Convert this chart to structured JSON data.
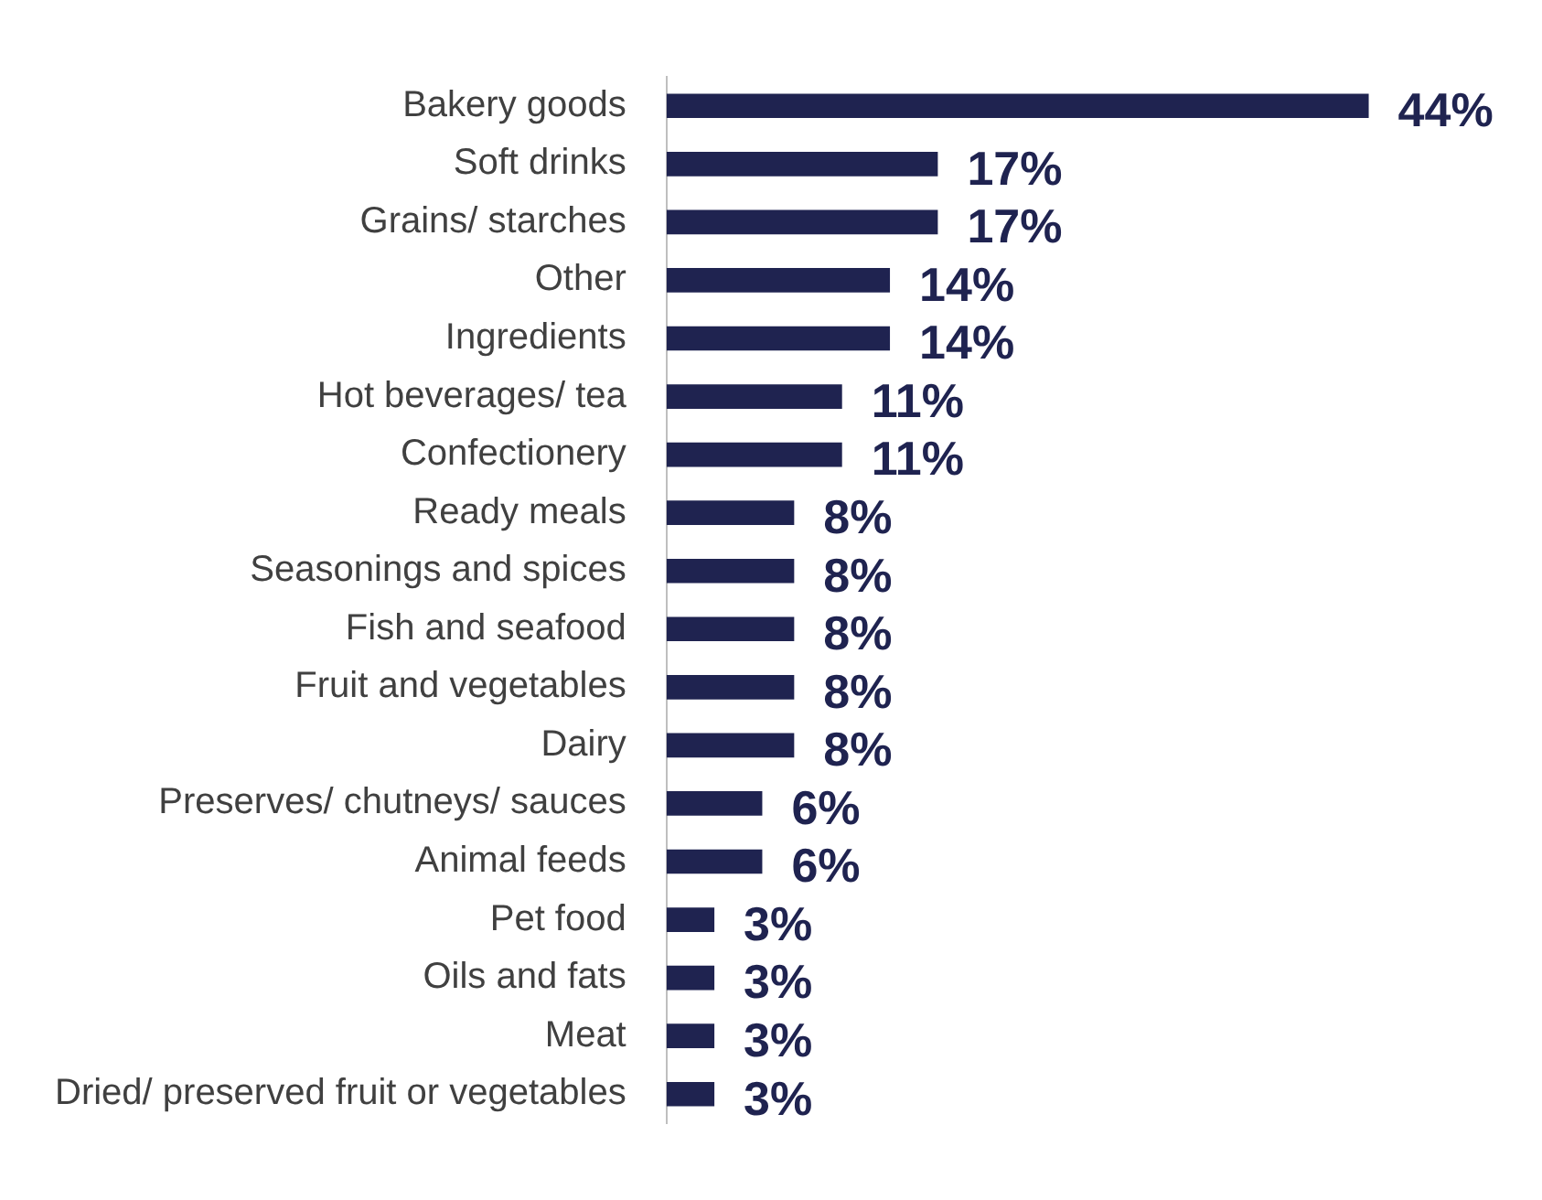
{
  "chart_data": {
    "type": "bar",
    "orientation": "horizontal",
    "categories": [
      "Bakery goods",
      "Soft drinks",
      "Grains/ starches",
      "Other",
      "Ingredients",
      "Hot beverages/ tea",
      "Confectionery",
      "Ready meals",
      "Seasonings and spices",
      "Fish and seafood",
      "Fruit and vegetables",
      "Dairy",
      "Preserves/ chutneys/ sauces",
      "Animal feeds",
      "Pet food",
      "Oils and fats",
      "Meat",
      "Dried/ preserved fruit or vegetables"
    ],
    "values": [
      44,
      17,
      17,
      14,
      14,
      11,
      11,
      8,
      8,
      8,
      8,
      8,
      6,
      6,
      3,
      3,
      3,
      3
    ],
    "value_labels": [
      "44%",
      "17%",
      "17%",
      "14%",
      "14%",
      "11%",
      "11%",
      "8%",
      "8%",
      "8%",
      "8%",
      "8%",
      "6%",
      "6%",
      "3%",
      "3%",
      "3%",
      "3%"
    ],
    "color": "#1f2350",
    "grid": false,
    "legend": false
  }
}
